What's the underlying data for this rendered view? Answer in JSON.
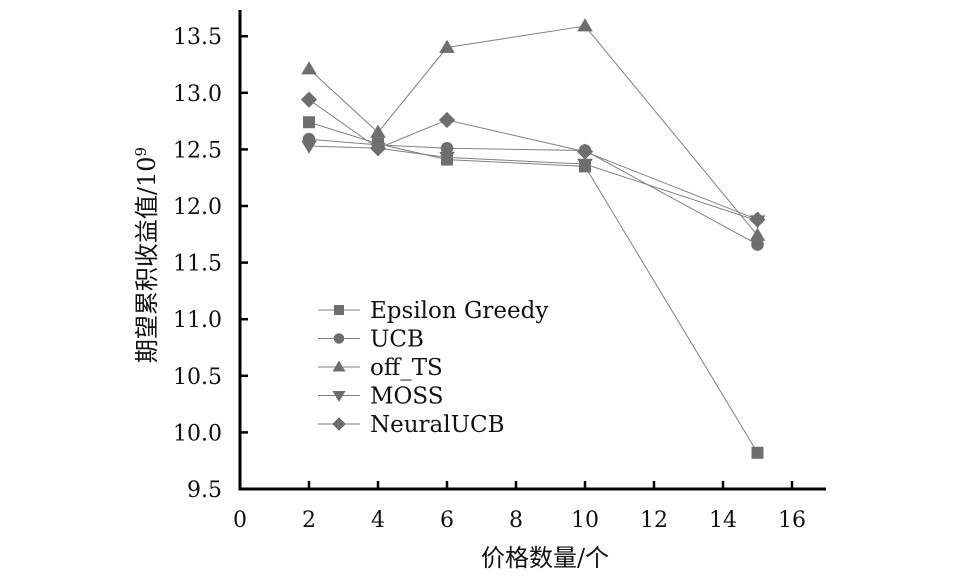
{
  "chart_data": {
    "type": "line",
    "title": "",
    "xlabel": "价格数量/个",
    "ylabel": "期望累积收益值/10",
    "ylabel_superscript": "9",
    "xlim": [
      0,
      17
    ],
    "ylim": [
      9.5,
      13.75
    ],
    "xticks": [
      0,
      2,
      4,
      6,
      8,
      10,
      12,
      14,
      16
    ],
    "yticks": [
      9.5,
      10.0,
      10.5,
      11.0,
      11.5,
      12.0,
      12.5,
      13.0,
      13.5
    ],
    "xtick_labels": [
      "0",
      "2",
      "4",
      "6",
      "8",
      "10",
      "12",
      "14",
      "16"
    ],
    "ytick_labels": [
      "9.5",
      "10.0",
      "10.5",
      "11.0",
      "11.5",
      "12.0",
      "12.5",
      "13.0",
      "13.5"
    ],
    "grid": false,
    "legend_position": "center-left",
    "line_color": "#808080",
    "marker_color": "#6e6e6e",
    "x": [
      2,
      4,
      6,
      10,
      15
    ],
    "series": [
      {
        "name": "Epsilon Greedy",
        "marker": "square",
        "values": [
          12.74,
          12.55,
          12.41,
          12.35,
          9.82
        ]
      },
      {
        "name": "UCB",
        "marker": "circle",
        "values": [
          12.59,
          12.54,
          12.51,
          12.49,
          11.66
        ]
      },
      {
        "name": "off_TS",
        "marker": "triangle-up",
        "values": [
          13.21,
          12.65,
          13.4,
          13.59,
          11.74
        ]
      },
      {
        "name": "MOSS",
        "marker": "triangle-down",
        "values": [
          12.53,
          12.51,
          12.43,
          12.37,
          11.87
        ]
      },
      {
        "name": "NeuralUCB",
        "marker": "diamond",
        "values": [
          12.94,
          12.51,
          12.76,
          12.48,
          11.88
        ]
      }
    ]
  }
}
